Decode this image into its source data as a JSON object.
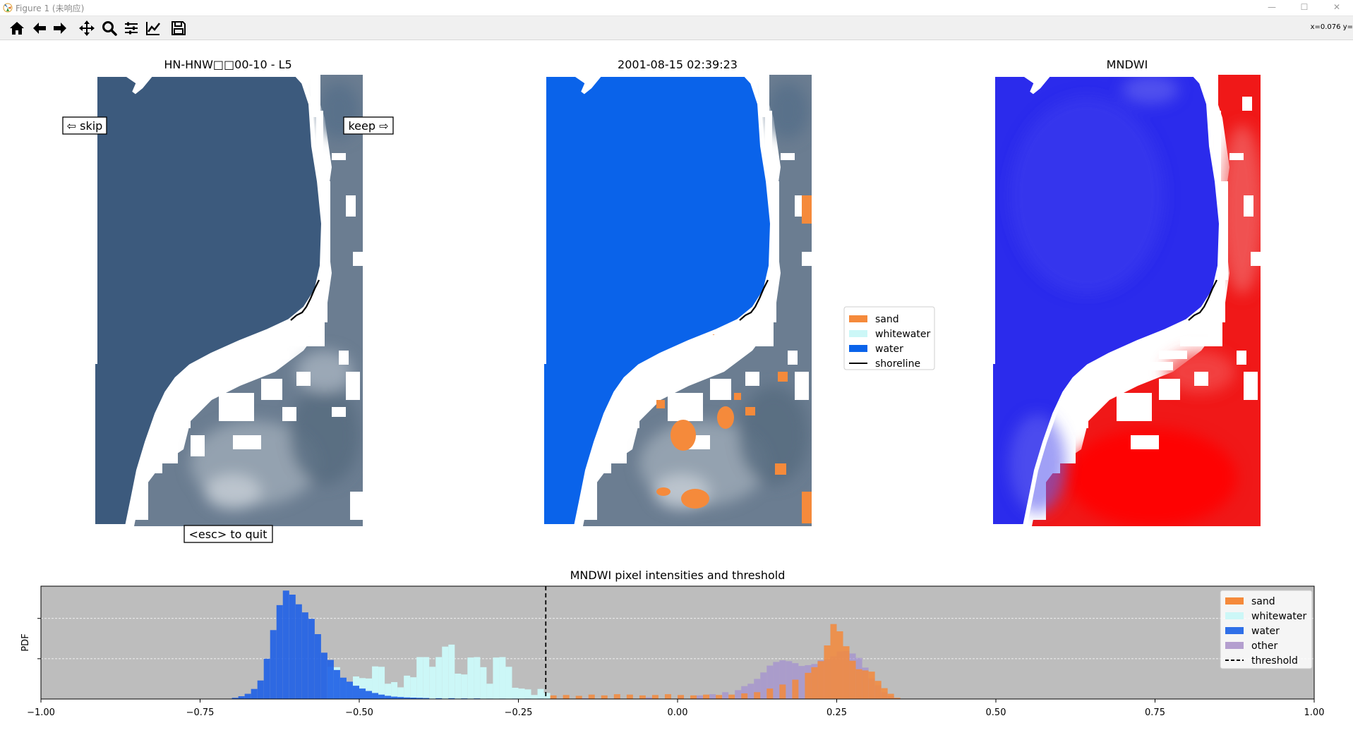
{
  "window": {
    "title": "Figure 1 (未响应)",
    "controls": [
      "—",
      "☐",
      "✕"
    ]
  },
  "toolbar": {
    "buttons": [
      {
        "name": "home-icon"
      },
      {
        "name": "back-arrow-icon"
      },
      {
        "name": "forward-arrow-icon"
      },
      {
        "name": "pan-icon"
      },
      {
        "name": "zoom-icon"
      },
      {
        "name": "configure-subplots-icon"
      },
      {
        "name": "edit-axes-icon"
      },
      {
        "name": "save-icon"
      }
    ],
    "coordinate_readout": "x=0.076 y="
  },
  "figure": {
    "panel1": {
      "title": "HN-HNW□□00-10 - L5",
      "skip_label": "⇦ skip",
      "keep_label": "keep ⇨",
      "quit_label": "<esc> to quit"
    },
    "panel2": {
      "title": "2001-08-15  02:39:23"
    },
    "panel3": {
      "title": "MNDWI"
    },
    "class_legend": [
      {
        "label": "sand",
        "color": "#f58a3b",
        "kind": "patch"
      },
      {
        "label": "whitewater",
        "color": "#ccf7f7",
        "kind": "patch"
      },
      {
        "label": "water",
        "color": "#0a63ea",
        "kind": "patch"
      },
      {
        "label": "shoreline",
        "color": "#000000",
        "kind": "line"
      }
    ]
  },
  "chart_data": {
    "type": "bar",
    "title": "MNDWI pixel intensities and threshold",
    "xlabel": "",
    "ylabel": "PDF",
    "xlim": [
      -1.0,
      1.0
    ],
    "xticks": [
      "−1.00",
      "−0.75",
      "−0.50",
      "−0.25",
      "0.00",
      "0.25",
      "0.50",
      "0.75",
      "1.00"
    ],
    "xtick_values": [
      -1.0,
      -0.75,
      -0.5,
      -0.25,
      0.0,
      0.25,
      0.5,
      0.75,
      1.0
    ],
    "ylim": [
      0,
      28
    ],
    "grid": "horizontal-dashed",
    "background": "#bdbdbd",
    "threshold": -0.207,
    "legend_position": "top-right",
    "legend": [
      {
        "label": "sand",
        "color": "#f58a3b",
        "kind": "patch"
      },
      {
        "label": "whitewater",
        "color": "#ccf7f7",
        "kind": "patch"
      },
      {
        "label": "water",
        "color": "#2f6fe8",
        "kind": "patch"
      },
      {
        "label": "other",
        "color": "#b49fcf",
        "kind": "patch"
      },
      {
        "label": "threshold",
        "color": "#000000",
        "kind": "dashed-line"
      }
    ],
    "series": [
      {
        "name": "other",
        "color": "#a08ad2",
        "opacity": 0.65,
        "bin_width": 0.01,
        "x": [
          -0.2,
          -0.15,
          -0.1,
          -0.05,
          0.0,
          0.03,
          0.05,
          0.07,
          0.09,
          0.1,
          0.11,
          0.12,
          0.13,
          0.14,
          0.15,
          0.16,
          0.17,
          0.18,
          0.19,
          0.2,
          0.21,
          0.22,
          0.23,
          0.24,
          0.25,
          0.26,
          0.27,
          0.28,
          0.29,
          0.3,
          0.31,
          0.32,
          0.33,
          0.34
        ],
        "values": [
          0.1,
          0.2,
          0.3,
          0.4,
          0.6,
          0.9,
          1.2,
          1.7,
          2.2,
          3.2,
          3.8,
          5.0,
          6.6,
          8.3,
          9.2,
          9.6,
          9.4,
          8.9,
          8.2,
          8.4,
          8.7,
          9.6,
          9.9,
          10.6,
          11.8,
          11.9,
          11.3,
          10.2,
          7.8,
          5.1,
          3.4,
          1.7,
          0.7,
          0.2
        ]
      },
      {
        "name": "sand",
        "color": "#f58a3b",
        "opacity": 0.85,
        "bin_width": 0.01,
        "x": [
          -0.2,
          -0.18,
          -0.16,
          -0.14,
          -0.12,
          -0.1,
          -0.08,
          -0.06,
          -0.04,
          -0.02,
          0.0,
          0.02,
          0.04,
          0.06,
          0.08,
          0.1,
          0.12,
          0.14,
          0.16,
          0.18,
          0.2,
          0.21,
          0.22,
          0.23,
          0.24,
          0.25,
          0.26,
          0.27,
          0.28,
          0.29,
          0.3,
          0.31,
          0.32,
          0.33,
          0.34
        ],
        "values": [
          0.9,
          1.0,
          0.8,
          1.1,
          0.9,
          1.2,
          1.1,
          0.9,
          1.0,
          1.2,
          1.0,
          0.9,
          1.1,
          1.0,
          1.1,
          1.4,
          1.7,
          2.6,
          3.6,
          4.8,
          6.5,
          7.9,
          9.4,
          13.3,
          18.6,
          16.8,
          13.1,
          9.5,
          7.4,
          7.1,
          6.8,
          4.5,
          2.7,
          1.3,
          0.3
        ]
      },
      {
        "name": "whitewater",
        "color": "#ccf7f7",
        "opacity": 1.0,
        "bin_width": 0.01,
        "x": [
          -0.55,
          -0.54,
          -0.53,
          -0.52,
          -0.51,
          -0.5,
          -0.49,
          -0.48,
          -0.47,
          -0.46,
          -0.45,
          -0.44,
          -0.43,
          -0.42,
          -0.41,
          -0.4,
          -0.39,
          -0.38,
          -0.37,
          -0.36,
          -0.35,
          -0.34,
          -0.33,
          -0.32,
          -0.31,
          -0.3,
          -0.29,
          -0.28,
          -0.27,
          -0.26,
          -0.25,
          -0.24,
          -0.23,
          -0.22,
          -0.21
        ],
        "values": [
          8.0,
          7.9,
          5.2,
          4.0,
          5.6,
          5.2,
          5.1,
          8.1,
          8.0,
          3.8,
          4.2,
          2.9,
          5.8,
          5.4,
          10.4,
          10.4,
          8.0,
          10.4,
          13.0,
          13.5,
          6.3,
          6.1,
          10.3,
          10.4,
          7.9,
          3.8,
          10.3,
          10.4,
          8.0,
          2.8,
          2.6,
          2.4,
          1.0,
          2.5,
          1.5
        ]
      },
      {
        "name": "water",
        "color": "#1e5fe6",
        "opacity": 0.9,
        "bin_width": 0.01,
        "x": [
          -0.7,
          -0.69,
          -0.68,
          -0.67,
          -0.66,
          -0.65,
          -0.64,
          -0.63,
          -0.62,
          -0.61,
          -0.6,
          -0.59,
          -0.58,
          -0.57,
          -0.56,
          -0.55,
          -0.54,
          -0.53,
          -0.52,
          -0.51,
          -0.5,
          -0.49,
          -0.48,
          -0.47,
          -0.46,
          -0.45,
          -0.44,
          -0.43,
          -0.42,
          -0.41,
          -0.4,
          -0.38,
          -0.36,
          -0.34,
          -0.32,
          -0.3,
          -0.28,
          -0.26,
          -0.24,
          -0.22
        ],
        "values": [
          0.3,
          0.7,
          1.3,
          2.5,
          4.6,
          10.0,
          17.1,
          23.3,
          26.9,
          25.9,
          23.5,
          21.5,
          19.9,
          16.1,
          11.5,
          9.7,
          7.2,
          5.3,
          4.3,
          3.3,
          2.6,
          2.0,
          1.5,
          1.1,
          0.8,
          0.6,
          0.5,
          0.4,
          0.35,
          0.3,
          0.25,
          0.2,
          0.2,
          0.15,
          0.15,
          0.1,
          0.1,
          0.1,
          0.1,
          0.1
        ]
      }
    ]
  }
}
